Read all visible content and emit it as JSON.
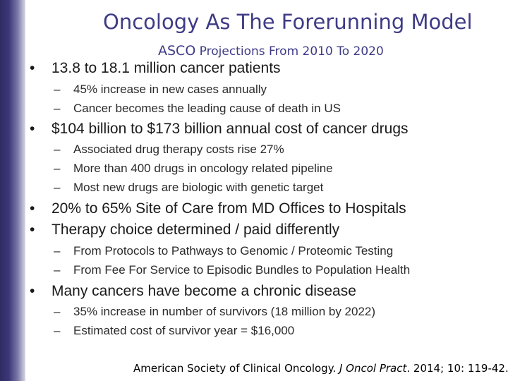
{
  "title": "Oncology As The Forerunning Model",
  "subtitle": {
    "org": "ASCO",
    "rest": " Projections From 2010 To 2020"
  },
  "bullet_char": "•",
  "dash_char": "–",
  "bullets": [
    {
      "text": "13.8 to 18.1 million cancer patients",
      "subs": [
        "45% increase in new cases annually",
        "Cancer becomes the leading cause of death in US"
      ]
    },
    {
      "text": "$104 billion to $173 billion annual cost of cancer drugs",
      "subs": [
        "Associated drug therapy costs rise 27%",
        "More than 400 drugs in oncology related pipeline",
        "Most new drugs are biologic with genetic target"
      ]
    },
    {
      "text": "20% to 65% Site of Care from MD Offices to Hospitals",
      "subs": []
    },
    {
      "text": "Therapy choice determined / paid differently",
      "subs": [
        "From Protocols to Pathways to Genomic / Proteomic Testing",
        "From Fee For Service to Episodic Bundles to Population Health"
      ]
    },
    {
      "text": "Many cancers have become a chronic disease",
      "subs": [
        "35% increase in number of survivors (18 million by 2022)",
        "Estimated cost of survivor year = $16,000"
      ]
    }
  ],
  "citation": {
    "prefix": "American Society of Clinical Oncology. ",
    "journal": "J Oncol Pract",
    "suffix": ". 2014;  10: 119-42."
  }
}
